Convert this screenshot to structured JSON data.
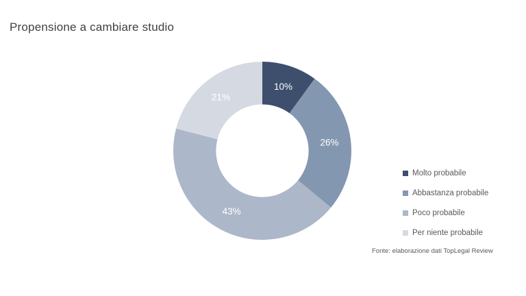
{
  "title": {
    "text": "Propensione a cambiare studio"
  },
  "chart_data": {
    "type": "pie",
    "subtype": "donut",
    "title": "Propensione a cambiare studio",
    "categories": [
      "Molto probabile",
      "Abbastanza probabile",
      "Poco probabile",
      "Per niente probabile"
    ],
    "values": [
      10,
      26,
      43,
      21
    ],
    "data_labels": [
      "10%",
      "26%",
      "43%",
      "21%"
    ],
    "colors": [
      "#3D4F6D",
      "#8497B1",
      "#ACB8C9",
      "#D5DAE2"
    ],
    "unit": "%",
    "start_angle_deg": 0,
    "direction": "clockwise",
    "hole_ratio": 0.52,
    "legend_position": "right",
    "data_label_color": "#FFFFFF"
  },
  "legend": {
    "items": [
      {
        "label": "Molto probabile",
        "color": "#3D4F6D"
      },
      {
        "label": "Abbastanza probabile",
        "color": "#8497B1"
      },
      {
        "label": "Poco probabile",
        "color": "#ACB8C9"
      },
      {
        "label": "Per niente probabile",
        "color": "#D5DAE2"
      }
    ]
  },
  "source": {
    "text": "Fonte: elaborazione dati TopLegal Review"
  },
  "colors": {
    "background": "#FFFFFF",
    "title_text": "#404040",
    "legend_text": "#595959",
    "source_text": "#595959"
  }
}
